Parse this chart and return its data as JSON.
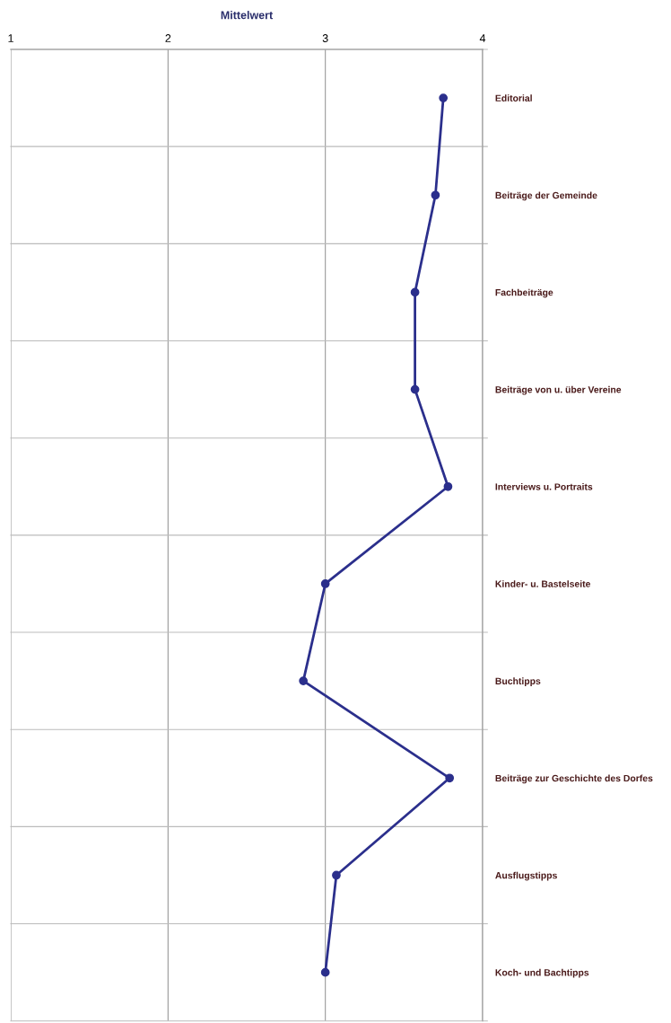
{
  "chart_data": {
    "type": "line",
    "orientation": "horizontal",
    "xlabel": "Mittelwert",
    "categories": [
      "Editorial",
      "Beiträge der Gemeinde",
      "Fachbeiträge",
      "Beiträge von u. über Vereine",
      "Interviews u. Portraits",
      "Kinder- u. Bastelseite",
      "Buchtipps",
      "Beiträge zur Geschichte des Dorfes",
      "Ausflugstipps",
      "Koch- und Bachtipps"
    ],
    "series": [
      {
        "color": "#2b2f8c",
        "values": [
          3.75,
          3.7,
          3.57,
          3.57,
          3.78,
          3.0,
          2.86,
          3.79,
          3.07,
          3.0
        ]
      }
    ],
    "xlim": [
      1,
      4
    ],
    "xticks": [
      1,
      2,
      3,
      4
    ],
    "grid": true,
    "marker": "circle",
    "line_style": "solid",
    "legend": false
  }
}
